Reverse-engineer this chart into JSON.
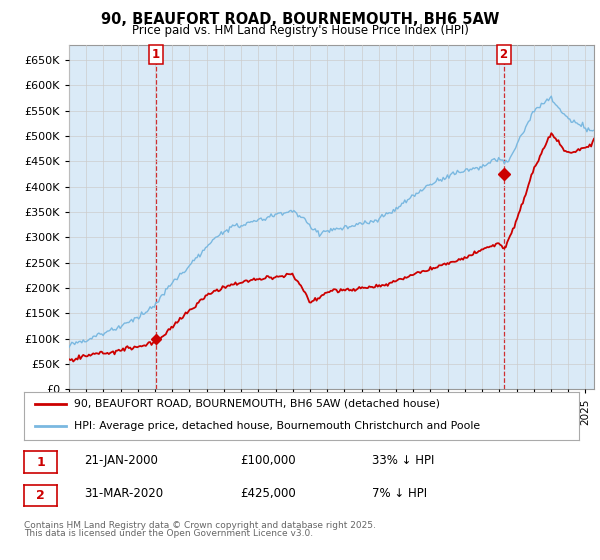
{
  "title": "90, BEAUFORT ROAD, BOURNEMOUTH, BH6 5AW",
  "subtitle": "Price paid vs. HM Land Registry's House Price Index (HPI)",
  "ylim": [
    0,
    680000
  ],
  "ytick_vals": [
    0,
    50000,
    100000,
    150000,
    200000,
    250000,
    300000,
    350000,
    400000,
    450000,
    500000,
    550000,
    600000,
    650000
  ],
  "hpi_color": "#7ab8e0",
  "hpi_fill_color": "#daeaf7",
  "price_color": "#cc0000",
  "sale1_date": "21-JAN-2000",
  "sale1_price": 100000,
  "sale1_hpi_pct": "33% ↓ HPI",
  "sale1_label": "1",
  "sale1_year": 2000.05,
  "sale2_date": "31-MAR-2020",
  "sale2_price": 425000,
  "sale2_hpi_pct": "7% ↓ HPI",
  "sale2_label": "2",
  "sale2_year": 2020.25,
  "legend_line1": "90, BEAUFORT ROAD, BOURNEMOUTH, BH6 5AW (detached house)",
  "legend_line2": "HPI: Average price, detached house, Bournemouth Christchurch and Poole",
  "footer1": "Contains HM Land Registry data © Crown copyright and database right 2025.",
  "footer2": "This data is licensed under the Open Government Licence v3.0.",
  "bg_color": "#ffffff",
  "grid_color": "#cccccc"
}
